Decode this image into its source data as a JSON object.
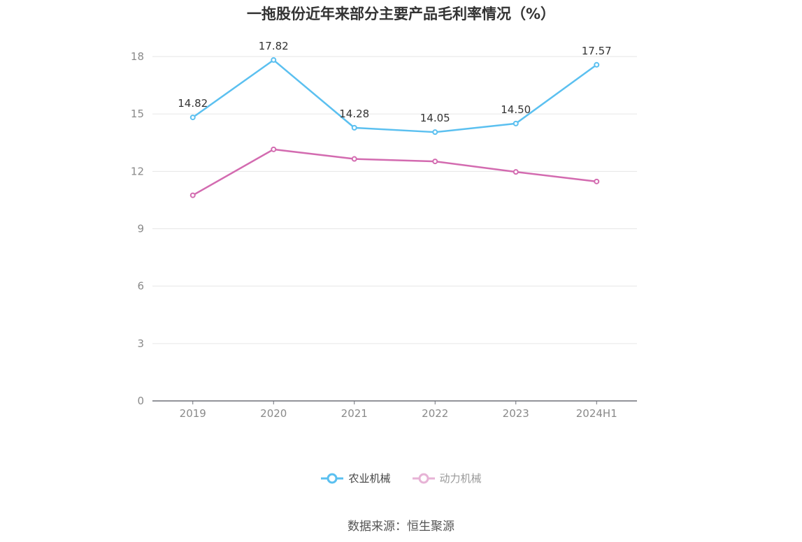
{
  "chart_data": {
    "type": "line",
    "title": "一拖股份近年来部分主要产品毛利率情况（%）",
    "categories": [
      "2019",
      "2020",
      "2021",
      "2022",
      "2023",
      "2024H1"
    ],
    "series": [
      {
        "name": "农业机械",
        "values": [
          14.82,
          17.82,
          14.28,
          14.05,
          14.5,
          17.57
        ],
        "color": "#5bc0f0",
        "labels": [
          "14.82",
          "17.82",
          "14.28",
          "14.05",
          "14.50",
          "17.57"
        ]
      },
      {
        "name": "动力机械",
        "values": [
          10.75,
          13.15,
          12.65,
          12.52,
          11.97,
          11.47
        ],
        "color": "#d36bb0"
      }
    ],
    "ylim": [
      0,
      18
    ],
    "yticks": [
      0,
      3,
      6,
      9,
      12,
      15,
      18
    ],
    "grid": true,
    "legend_position": "bottom"
  },
  "source": "数据来源：恒生聚源"
}
